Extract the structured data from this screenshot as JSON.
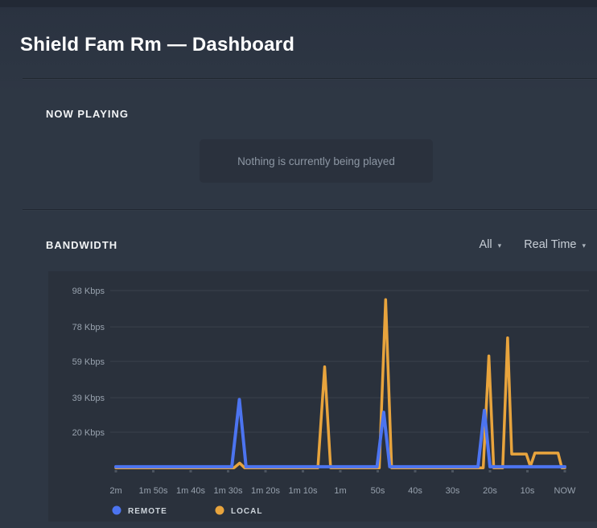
{
  "header": {
    "title": "Shield Fam Rm — Dashboard"
  },
  "now_playing": {
    "heading": "NOW PLAYING",
    "empty_message": "Nothing is currently being played"
  },
  "bandwidth": {
    "heading": "BANDWIDTH",
    "filter_dropdown": {
      "value": "All",
      "caret": "▾"
    },
    "time_dropdown": {
      "value": "Real Time",
      "caret": "▾"
    }
  },
  "colors": {
    "remote": "#4c74f0",
    "local": "#e8a43d",
    "background": "#2e3744",
    "panel": "#2a313c",
    "axis_text": "#98a2ae",
    "legend_text": "#ced5dc",
    "gridline": "rgba(255,255,255,0.08)",
    "tick_mark": "#4d555f"
  },
  "chart_data": {
    "type": "line",
    "title": "BANDWIDTH",
    "unit": "Kbps",
    "x_axis": {
      "tick_labels": [
        "2m",
        "1m 50s",
        "1m 40s",
        "1m 30s",
        "1m 20s",
        "1m 10s",
        "1m",
        "50s",
        "40s",
        "30s",
        "20s",
        "10s",
        "NOW"
      ],
      "range_seconds_ago": [
        120,
        0
      ]
    },
    "y_axis": {
      "tick_labels": [
        "98 Kbps",
        "78 Kbps",
        "59 Kbps",
        "39 Kbps",
        "20 Kbps"
      ],
      "tick_values": [
        98,
        78,
        59,
        39,
        20
      ],
      "unit": "Kbps"
    },
    "legend": [
      {
        "label": "REMOTE",
        "color": "#4c74f0"
      },
      {
        "label": "LOCAL",
        "color": "#e8a43d"
      }
    ],
    "series": [
      {
        "name": "LOCAL",
        "color": "#e8a43d",
        "stroke_width": 3.5,
        "points": [
          [
            120,
            0.4
          ],
          [
            88.4,
            0.4
          ],
          [
            86.9,
            3
          ],
          [
            85.6,
            0.4
          ],
          [
            66,
            0.4
          ],
          [
            64.2,
            56
          ],
          [
            62.6,
            0.4
          ],
          [
            49.6,
            0.4
          ],
          [
            47.9,
            93
          ],
          [
            46.3,
            0.4
          ],
          [
            21.8,
            0.4
          ],
          [
            20.3,
            62
          ],
          [
            19,
            0.4
          ],
          [
            16.6,
            0.4
          ],
          [
            15.3,
            72
          ],
          [
            14.2,
            8
          ],
          [
            10.3,
            8
          ],
          [
            9.2,
            1.2
          ],
          [
            8,
            8.5
          ],
          [
            1.8,
            8.5
          ],
          [
            0.8,
            0.4
          ],
          [
            0,
            0.4
          ]
        ]
      },
      {
        "name": "REMOTE",
        "color": "#4c74f0",
        "stroke_width": 4,
        "points": [
          [
            120,
            1
          ],
          [
            89,
            1
          ],
          [
            87,
            38
          ],
          [
            85.2,
            1
          ],
          [
            50.2,
            1
          ],
          [
            48.4,
            31
          ],
          [
            46.8,
            1
          ],
          [
            23.2,
            1
          ],
          [
            21.5,
            32
          ],
          [
            20,
            1
          ],
          [
            0,
            1
          ]
        ]
      }
    ]
  }
}
